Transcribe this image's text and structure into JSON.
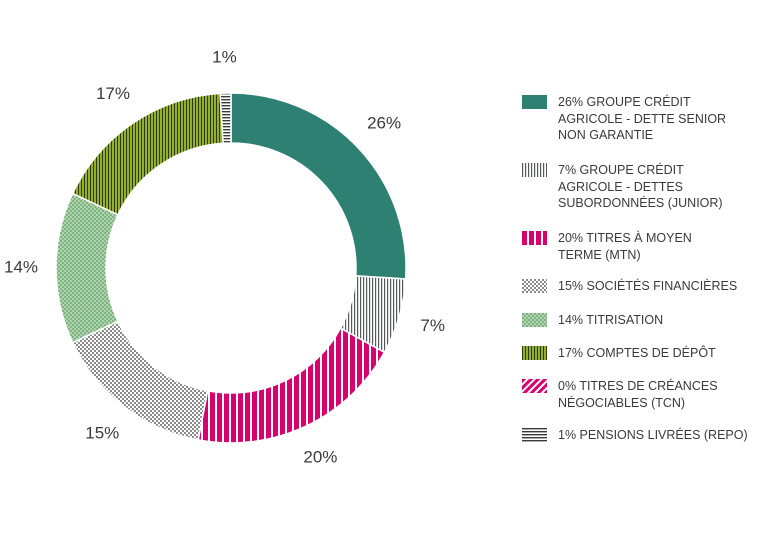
{
  "chart_data": {
    "type": "pie",
    "style": "donut",
    "slices": [
      {
        "label": "26% GROUPE CRÉDIT\nAGRICOLE - DETTE SENIOR\nNON GARANTIE",
        "value": 26,
        "value_label": "26%",
        "color": "#2e8073",
        "pattern": "solid"
      },
      {
        "label": "7% GROUPE CRÉDIT\nAGRICOLE - DETTES\nSUBORDONNÉES (JUNIOR)",
        "value": 7,
        "value_label": "7%",
        "color": "#55585c",
        "pattern": "vertical-lines"
      },
      {
        "label": "20% TITRES À MOYEN\nTERME (MTN)",
        "value": 20,
        "value_label": "20%",
        "color": "#d6006f",
        "pattern": "vertical-bars"
      },
      {
        "label": "15% SOCIÉTÉS FINANCIÈRES",
        "value": 15,
        "value_label": "15%",
        "color": "#8a8a8a",
        "pattern": "checker"
      },
      {
        "label": "14% TITRISATION",
        "value": 14,
        "value_label": "14%",
        "color": "#a6d8a8",
        "pattern": "dots"
      },
      {
        "label": "17% COMPTES DE DÉPÔT",
        "value": 17,
        "value_label": "17%",
        "color": "#93b02d",
        "pattern": "vertical-lines-dense"
      },
      {
        "label": "0% TITRES DE CRÉANCES\nNÉGOCIABLES (TCN)",
        "value": 0,
        "value_label": "",
        "color": "#d6006f",
        "pattern": "diagonal"
      },
      {
        "label": "1% PENSIONS LIVRÉES (REPO)",
        "value": 1,
        "value_label": "1%",
        "color": "#3a3a3a",
        "pattern": "horizontal-lines"
      }
    ],
    "legend_position": "right"
  }
}
